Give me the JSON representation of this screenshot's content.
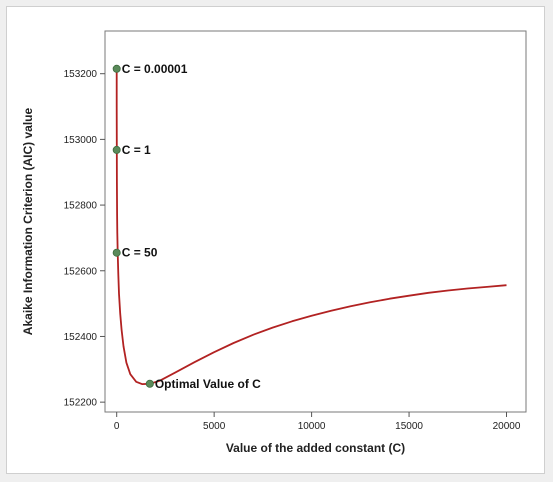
{
  "chart_data": {
    "type": "line",
    "title": "",
    "xlabel": "Value of the added constant (C)",
    "ylabel": "Akaike Information Criterion (AIC) value",
    "xlim": [
      -600,
      21000
    ],
    "ylim": [
      152170,
      153330
    ],
    "x_ticks": [
      0,
      5000,
      10000,
      15000,
      20000
    ],
    "y_ticks": [
      152200,
      152400,
      152600,
      152800,
      153000,
      153200
    ],
    "grid": false,
    "legend": "none",
    "line_color": "#b22222",
    "marker_color": "#5a8a5a",
    "series": [
      {
        "x": [
          0,
          2,
          5,
          10,
          20,
          30,
          50,
          80,
          120,
          180,
          250,
          350,
          500,
          700,
          1000,
          1300,
          1700,
          2200,
          3000,
          4000,
          5000,
          6000,
          7000,
          8000,
          9000,
          10000,
          11000,
          12000,
          13000,
          14000,
          15000,
          16000,
          17000,
          18000,
          19000,
          20000
        ],
        "y": [
          153215,
          153100,
          152985,
          152870,
          152770,
          152715,
          152655,
          152590,
          152530,
          152470,
          152420,
          152370,
          152320,
          152285,
          152262,
          152255,
          152256,
          152265,
          152290,
          152322,
          152352,
          152380,
          152405,
          152427,
          152446,
          152463,
          152478,
          152492,
          152504,
          152515,
          152524,
          152533,
          152540,
          152546,
          152551,
          152556
        ]
      }
    ],
    "annotations": [
      {
        "label": "C = 0.00001",
        "x": 0,
        "y": 153215
      },
      {
        "label": "C = 1",
        "x": 0,
        "y": 152968
      },
      {
        "label": "C = 50",
        "x": 0,
        "y": 152655
      },
      {
        "label": "Optimal Value of C",
        "x": 1700,
        "y": 152256
      }
    ]
  }
}
